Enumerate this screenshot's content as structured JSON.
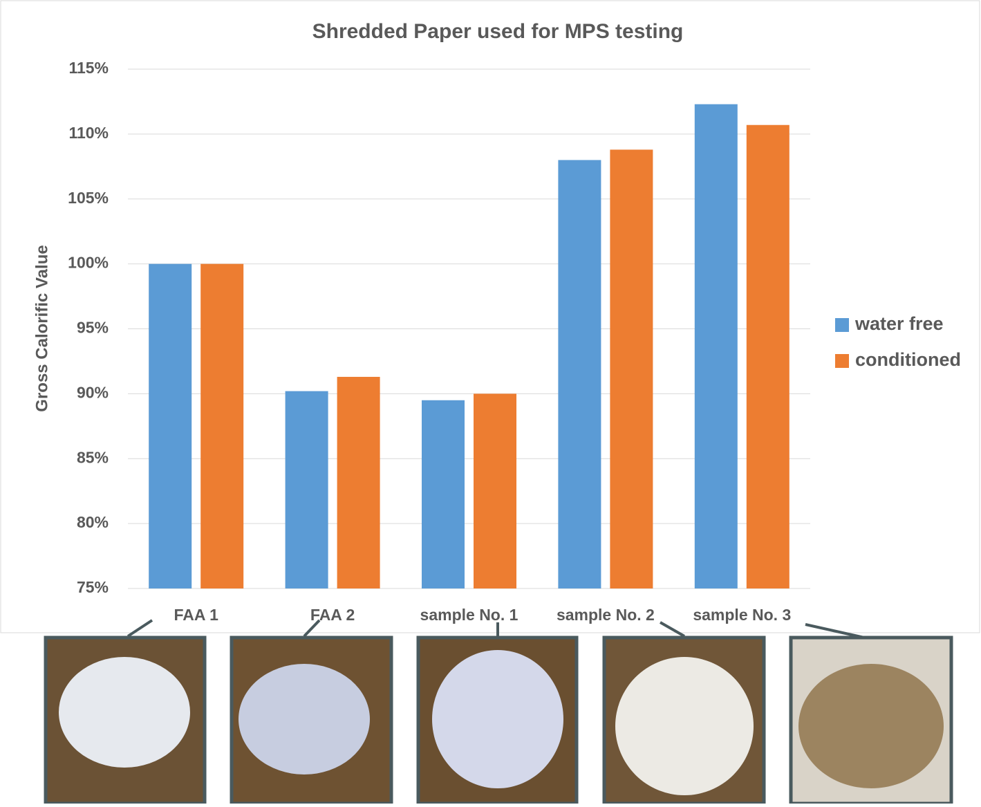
{
  "chart_data": {
    "type": "bar",
    "title": "Shredded Paper used for MPS testing",
    "y_label": "Gross Calorific Value",
    "categories": [
      "FAA 1",
      "FAA 2",
      "sample No. 1",
      "sample No. 2",
      "sample No. 3"
    ],
    "series": [
      {
        "name": "water free",
        "color": "#5b9bd5",
        "values": [
          100,
          90.2,
          89.5,
          108.0,
          112.3
        ]
      },
      {
        "name": "conditioned",
        "color": "#ed7d31",
        "values": [
          100,
          91.3,
          90.0,
          108.8,
          110.7
        ]
      }
    ],
    "ylim": [
      75,
      115
    ],
    "yticks": [
      {
        "value": 75,
        "label": "75%"
      },
      {
        "value": 80,
        "label": "80%"
      },
      {
        "value": 85,
        "label": "85%"
      },
      {
        "value": 90,
        "label": "90%"
      },
      {
        "value": 95,
        "label": "95%"
      },
      {
        "value": 100,
        "label": "100%"
      },
      {
        "value": 105,
        "label": "105%"
      },
      {
        "value": 110,
        "label": "110%"
      },
      {
        "value": 115,
        "label": "115%"
      }
    ],
    "grid": true,
    "legend": "right"
  }
}
